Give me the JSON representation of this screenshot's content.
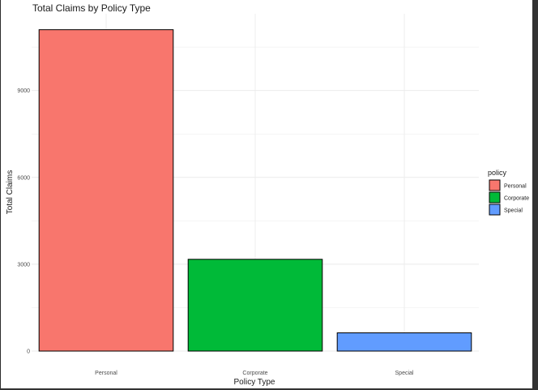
{
  "chart_data": {
    "type": "bar",
    "title": "Total Claims by Policy Type",
    "xlabel": "Policy Type",
    "ylabel": "Total Claims",
    "categories": [
      "Personal",
      "Corporate",
      "Special"
    ],
    "values": [
      11100,
      3170,
      630
    ],
    "colors": [
      "#F8766D",
      "#00BA38",
      "#619CFF"
    ],
    "bar_outline": "#000000",
    "yticks": [
      0,
      3000,
      6000,
      9000
    ],
    "ylim": [
      0,
      11650
    ],
    "grid": true,
    "legend": {
      "title": "policy",
      "position": "right",
      "entries": [
        "Personal",
        "Corporate",
        "Special"
      ]
    }
  }
}
